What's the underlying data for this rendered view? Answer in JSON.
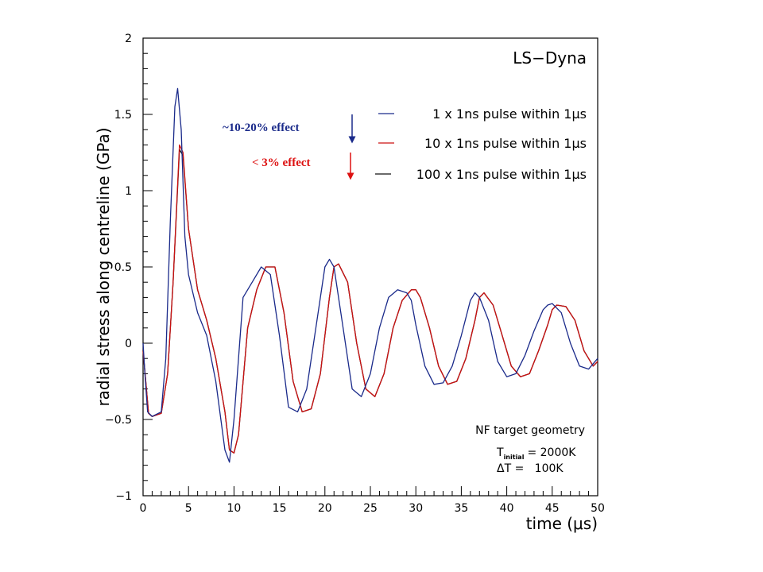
{
  "chart_data": {
    "type": "line",
    "title": "LS−Dyna",
    "xlabel": "time (μs)",
    "ylabel": "radial stress along centreline (GPa)",
    "xlim": [
      0,
      50
    ],
    "ylim": [
      -1,
      2
    ],
    "xticks": [
      "0",
      "5",
      "10",
      "15",
      "20",
      "25",
      "30",
      "35",
      "40",
      "45",
      "50"
    ],
    "yticks": [
      "−1",
      "−0.5",
      "0",
      "0.5",
      "1",
      "1.5",
      "2"
    ],
    "legend_placement": "top-right",
    "grid": false,
    "series": [
      {
        "name": "1 x 1ns pulse within 1μs",
        "color": "#1a2a8a",
        "x": [
          0,
          0.2,
          0.5,
          1,
          2,
          2.5,
          3,
          3.5,
          3.8,
          4.2,
          4.6,
          5,
          6,
          7,
          8,
          9,
          9.5,
          10,
          11,
          12,
          13,
          14,
          15,
          16,
          17,
          18,
          19,
          20,
          20.5,
          21,
          22,
          23,
          24,
          25,
          26,
          27,
          28,
          29,
          29.5,
          30,
          31,
          32,
          33,
          34,
          35,
          36,
          36.5,
          37,
          38,
          39,
          40,
          41,
          42,
          43,
          44,
          44.5,
          45,
          46,
          47,
          48,
          49,
          50
        ],
        "y": [
          0.0,
          -0.2,
          -0.45,
          -0.48,
          -0.45,
          -0.1,
          0.8,
          1.55,
          1.67,
          1.4,
          0.7,
          0.45,
          0.2,
          0.05,
          -0.25,
          -0.7,
          -0.78,
          -0.5,
          0.3,
          0.4,
          0.5,
          0.45,
          0.05,
          -0.42,
          -0.45,
          -0.3,
          0.1,
          0.5,
          0.55,
          0.5,
          0.1,
          -0.3,
          -0.35,
          -0.2,
          0.1,
          0.3,
          0.35,
          0.33,
          0.28,
          0.12,
          -0.15,
          -0.27,
          -0.26,
          -0.15,
          0.05,
          0.28,
          0.33,
          0.3,
          0.15,
          -0.12,
          -0.22,
          -0.2,
          -0.08,
          0.08,
          0.22,
          0.25,
          0.26,
          0.2,
          0.0,
          -0.15,
          -0.17,
          -0.1
        ]
      },
      {
        "name": "10 x 1ns pulse within 1μs",
        "color": "#cc1111",
        "x": [
          0,
          0.3,
          0.6,
          1,
          2,
          2.7,
          3.3,
          4,
          4.4,
          5,
          6,
          7,
          8,
          9,
          9.5,
          10,
          10.5,
          11.5,
          12.5,
          13.5,
          14.5,
          15.5,
          16.5,
          17.5,
          18.5,
          19.5,
          20.5,
          21,
          21.5,
          22.5,
          23.5,
          24.5,
          25.5,
          26.5,
          27.5,
          28.5,
          29.5,
          30,
          30.5,
          31.5,
          32.5,
          33.5,
          34.5,
          35.5,
          36.5,
          37,
          37.5,
          38.5,
          39.5,
          40.5,
          41.5,
          42.5,
          43.5,
          44.5,
          45,
          45.5,
          46.5,
          47.5,
          48.5,
          49.5,
          50
        ],
        "y": [
          -0.05,
          -0.25,
          -0.46,
          -0.48,
          -0.46,
          -0.2,
          0.4,
          1.3,
          1.25,
          0.75,
          0.35,
          0.15,
          -0.1,
          -0.45,
          -0.7,
          -0.72,
          -0.6,
          0.1,
          0.35,
          0.5,
          0.5,
          0.2,
          -0.25,
          -0.45,
          -0.43,
          -0.2,
          0.3,
          0.5,
          0.52,
          0.4,
          0.0,
          -0.3,
          -0.35,
          -0.2,
          0.1,
          0.28,
          0.35,
          0.35,
          0.3,
          0.1,
          -0.15,
          -0.27,
          -0.25,
          -0.1,
          0.15,
          0.3,
          0.33,
          0.25,
          0.05,
          -0.15,
          -0.22,
          -0.2,
          -0.05,
          0.12,
          0.22,
          0.25,
          0.24,
          0.15,
          -0.05,
          -0.15,
          -0.12
        ]
      },
      {
        "name": "100 x 1ns pulse within 1μs",
        "color": "#111111",
        "x": [
          0,
          0.3,
          0.6,
          1,
          2,
          2.7,
          3.3,
          4,
          4.4,
          5,
          6,
          7,
          8,
          9,
          9.5,
          10,
          10.5,
          11.5,
          12.5,
          13.5,
          14.5,
          15.5,
          16.5,
          17.5,
          18.5,
          19.5,
          20.5,
          21,
          21.5,
          22.5,
          23.5,
          24.5,
          25.5,
          26.5,
          27.5,
          28.5,
          29.5,
          30,
          30.5,
          31.5,
          32.5,
          33.5,
          34.5,
          35.5,
          36.5,
          37,
          37.5,
          38.5,
          39.5,
          40.5,
          41.5,
          42.5,
          43.5,
          44.5,
          45,
          45.5,
          46.5,
          47.5,
          48.5,
          49.5,
          50
        ],
        "y": [
          -0.05,
          -0.25,
          -0.46,
          -0.48,
          -0.46,
          -0.2,
          0.4,
          1.27,
          1.23,
          0.75,
          0.35,
          0.15,
          -0.1,
          -0.45,
          -0.7,
          -0.72,
          -0.6,
          0.1,
          0.35,
          0.5,
          0.5,
          0.2,
          -0.25,
          -0.45,
          -0.43,
          -0.2,
          0.3,
          0.5,
          0.52,
          0.4,
          0.0,
          -0.3,
          -0.35,
          -0.2,
          0.1,
          0.28,
          0.35,
          0.35,
          0.3,
          0.1,
          -0.15,
          -0.27,
          -0.25,
          -0.1,
          0.15,
          0.3,
          0.33,
          0.25,
          0.05,
          -0.15,
          -0.22,
          -0.2,
          -0.05,
          0.12,
          0.22,
          0.25,
          0.24,
          0.15,
          -0.05,
          -0.15,
          -0.12
        ]
      }
    ],
    "annotations": {
      "effect_upper": "~10-20% effect",
      "effect_lower": "< 3% effect",
      "geometry_note": "NF target geometry",
      "t_initial_symbol": "T",
      "t_initial_subscript": "initial",
      "t_initial_value": "= 2000K",
      "delta_t": "ΔT =   100K",
      "upper_color": "#1a2a8a",
      "lower_color": "#dd1111"
    }
  }
}
